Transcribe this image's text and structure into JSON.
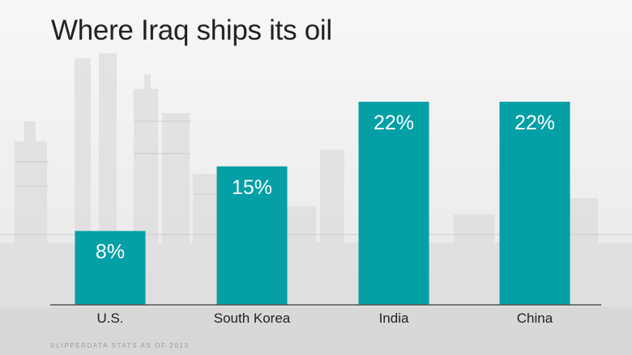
{
  "title": "Where Iraq ships its oil",
  "source": "©LIPPERDATA STATS AS OF 2013",
  "colors": {
    "bar": "#059fa6",
    "bar_label": "#ffffff",
    "axis": "#555555",
    "tick_label": "#222222"
  },
  "chart_data": {
    "type": "bar",
    "title": "Where Iraq ships its oil",
    "categories": [
      "U.S.",
      "South Korea",
      "India",
      "China"
    ],
    "values": [
      8,
      15,
      22,
      22
    ],
    "data_labels": [
      "8%",
      "15%",
      "22%",
      "22%"
    ],
    "ylim": [
      0,
      24
    ],
    "grid": false,
    "legend": "none"
  }
}
